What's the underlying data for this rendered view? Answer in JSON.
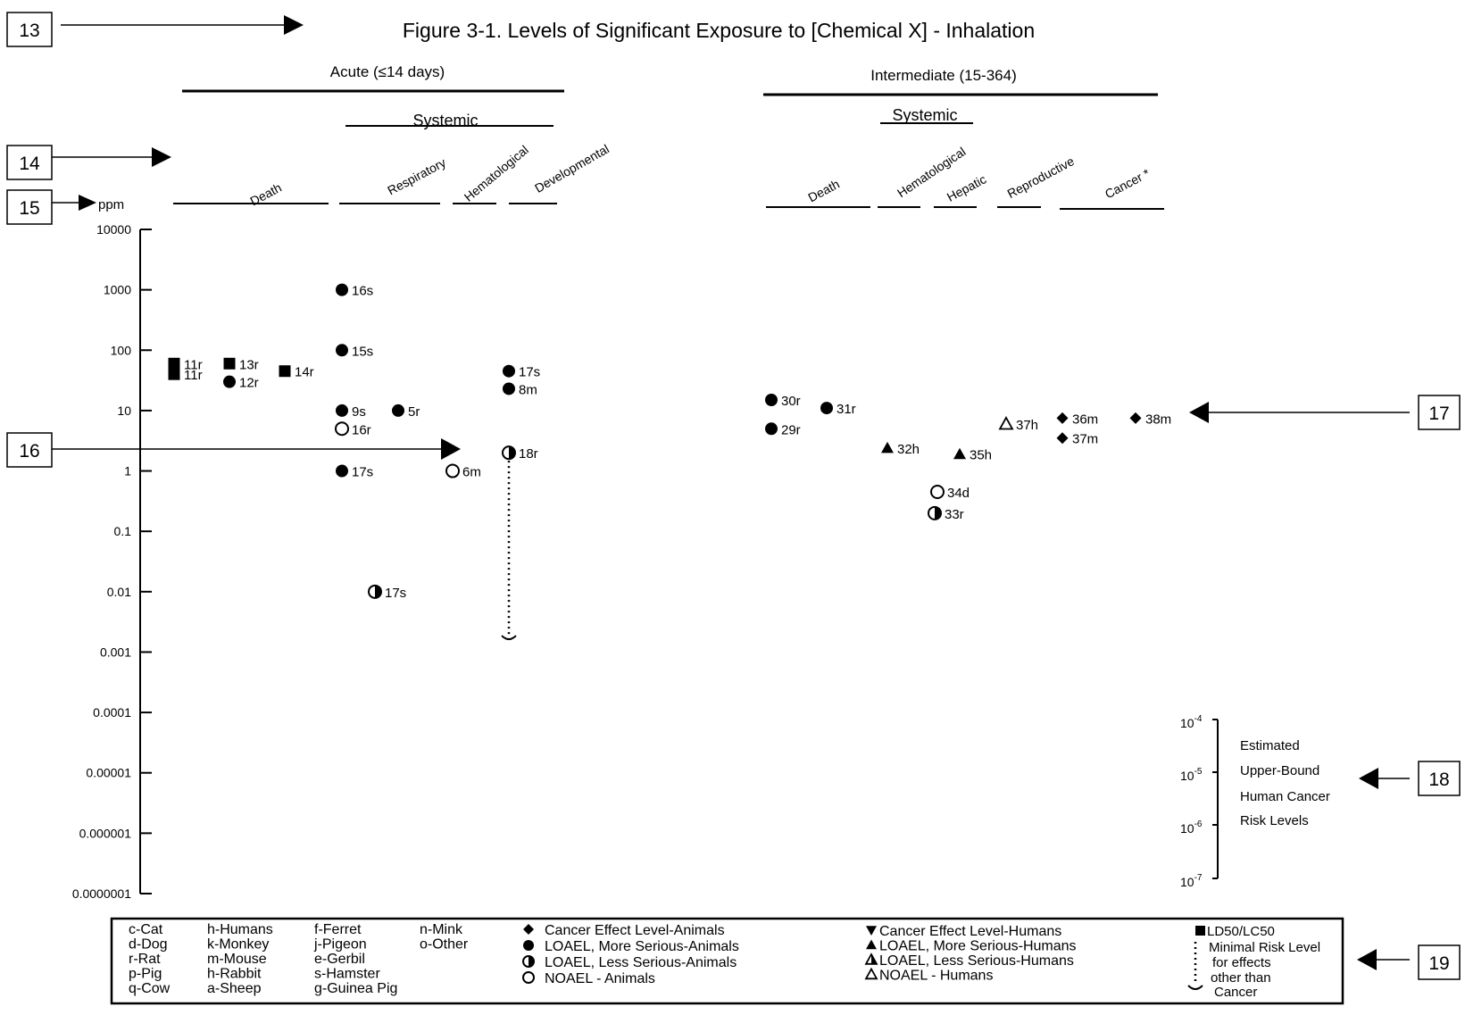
{
  "chart_data": {
    "type": "scatter",
    "title": "Figure 3-1.  Levels of Significant Exposure to [Chemical X] - Inhalation",
    "y_unit": "ppm",
    "y_scale": "log",
    "ylim": [
      1e-07,
      10000
    ],
    "y_ticks": [
      "10000",
      "1000",
      "100",
      "10",
      "1",
      "0.1",
      "0.01",
      "0.001",
      "0.0001",
      "0.00001",
      "0.000001",
      "0.0000001"
    ],
    "durations": [
      {
        "label": "Acute (≤14 days)",
        "systemic_label": "Systemic"
      },
      {
        "label": "Intermediate (15-364)",
        "systemic_label": "Systemic"
      }
    ],
    "categories": [
      {
        "label": "Death",
        "duration": 0
      },
      {
        "label": "Respiratory",
        "duration": 0
      },
      {
        "label": "Hematological",
        "duration": 0
      },
      {
        "label": "Developmental",
        "duration": 0
      },
      {
        "label": "Death",
        "duration": 1
      },
      {
        "label": "Hematological",
        "duration": 1
      },
      {
        "label": "Hepatic",
        "duration": 1
      },
      {
        "label": "Reproductive",
        "duration": 1
      },
      {
        "label": "Cancer *",
        "duration": 1
      }
    ],
    "points": [
      {
        "label": "11r",
        "value": 60,
        "symbol": "square",
        "category": 0
      },
      {
        "label": "11r",
        "value": 40,
        "symbol": "square",
        "category": 0
      },
      {
        "label": "13r",
        "value": 60,
        "symbol": "square",
        "category": 0
      },
      {
        "label": "12r",
        "value": 30,
        "symbol": "circle-filled",
        "category": 0
      },
      {
        "label": "14r",
        "value": 45,
        "symbol": "square",
        "category": 0
      },
      {
        "label": "16s",
        "value": 1000,
        "symbol": "circle-filled",
        "category": 1
      },
      {
        "label": "15s",
        "value": 100,
        "symbol": "circle-filled",
        "category": 1
      },
      {
        "label": "9s",
        "value": 10,
        "symbol": "circle-filled",
        "category": 1
      },
      {
        "label": "16r",
        "value": 5,
        "symbol": "circle-open",
        "category": 1
      },
      {
        "label": "5r",
        "value": 10,
        "symbol": "circle-filled",
        "category": 1
      },
      {
        "label": "17s",
        "value": 1,
        "symbol": "circle-filled",
        "category": 1
      },
      {
        "label": "17s",
        "value": 0.01,
        "symbol": "circle-half",
        "category": 1
      },
      {
        "label": "6m",
        "value": 1,
        "symbol": "circle-open",
        "category": 2
      },
      {
        "label": "17s",
        "value": 45,
        "symbol": "circle-filled",
        "category": 3
      },
      {
        "label": "8m",
        "value": 23,
        "symbol": "circle-filled",
        "category": 3
      },
      {
        "label": "18r",
        "value": 2,
        "symbol": "circle-half",
        "category": 3
      },
      {
        "label": "30r",
        "value": 15,
        "symbol": "circle-filled",
        "category": 4
      },
      {
        "label": "29r",
        "value": 5,
        "symbol": "circle-filled",
        "category": 4
      },
      {
        "label": "31r",
        "value": 11,
        "symbol": "circle-filled",
        "category": 4
      },
      {
        "label": "32h",
        "value": 2.4,
        "symbol": "triangle-filled",
        "category": 5
      },
      {
        "label": "34d",
        "value": 0.45,
        "symbol": "circle-open",
        "category": 6
      },
      {
        "label": "33r",
        "value": 0.2,
        "symbol": "circle-half",
        "category": 6
      },
      {
        "label": "35h",
        "value": 1.9,
        "symbol": "triangle-filled",
        "category": 6
      },
      {
        "label": "37h",
        "value": 6,
        "symbol": "triangle-open",
        "category": 7
      },
      {
        "label": "36m",
        "value": 7.5,
        "symbol": "diamond",
        "category": 8
      },
      {
        "label": "37m",
        "value": 3.5,
        "symbol": "diamond",
        "category": 8
      },
      {
        "label": "38m",
        "value": 7.5,
        "symbol": "diamond",
        "category": 8
      }
    ],
    "mrl": {
      "label": "18r",
      "from_value": 2,
      "to_value": 0.002
    },
    "risk_scale": {
      "ticks": [
        {
          "base": "10",
          "exp": "-4"
        },
        {
          "base": "10",
          "exp": "-5"
        },
        {
          "base": "10",
          "exp": "-6"
        },
        {
          "base": "10",
          "exp": "-7"
        }
      ],
      "text_lines": [
        "Estimated",
        "Upper-Bound",
        "Human Cancer",
        "Risk Levels"
      ]
    },
    "callouts": [
      "13",
      "14",
      "15",
      "16",
      "17",
      "18",
      "19"
    ],
    "legend": {
      "species_columns": [
        [
          "c-Cat",
          "d-Dog",
          "r-Rat",
          "p-Pig",
          "q-Cow"
        ],
        [
          "h-Humans",
          "k-Monkey",
          "m-Mouse",
          "h-Rabbit",
          "a-Sheep"
        ],
        [
          "f-Ferret",
          "j-Pigeon",
          "e-Gerbil",
          "s-Hamster",
          "g-Guinea Pig"
        ],
        [
          "n-Mink",
          "o-Other"
        ]
      ],
      "animal_symbols": [
        {
          "symbol": "diamond",
          "label": "Cancer Effect Level-Animals"
        },
        {
          "symbol": "circle-filled",
          "label": "LOAEL, More Serious-Animals"
        },
        {
          "symbol": "circle-half",
          "label": "LOAEL, Less Serious-Animals"
        },
        {
          "symbol": "circle-open",
          "label": "NOAEL - Animals"
        }
      ],
      "human_symbols": [
        {
          "symbol": "triangle-down",
          "label": "Cancer Effect Level-Humans"
        },
        {
          "symbol": "triangle-filled",
          "label": "LOAEL, More Serious-Humans"
        },
        {
          "symbol": "triangle-half",
          "label": "LOAEL, Less Serious-Humans"
        },
        {
          "symbol": "triangle-open",
          "label": "NOAEL - Humans"
        }
      ],
      "other_symbols": {
        "ld50": "LD50/LC50",
        "mrl_lines": [
          "Minimal Risk Level",
          "for effects",
          "other than",
          "Cancer"
        ]
      }
    }
  }
}
